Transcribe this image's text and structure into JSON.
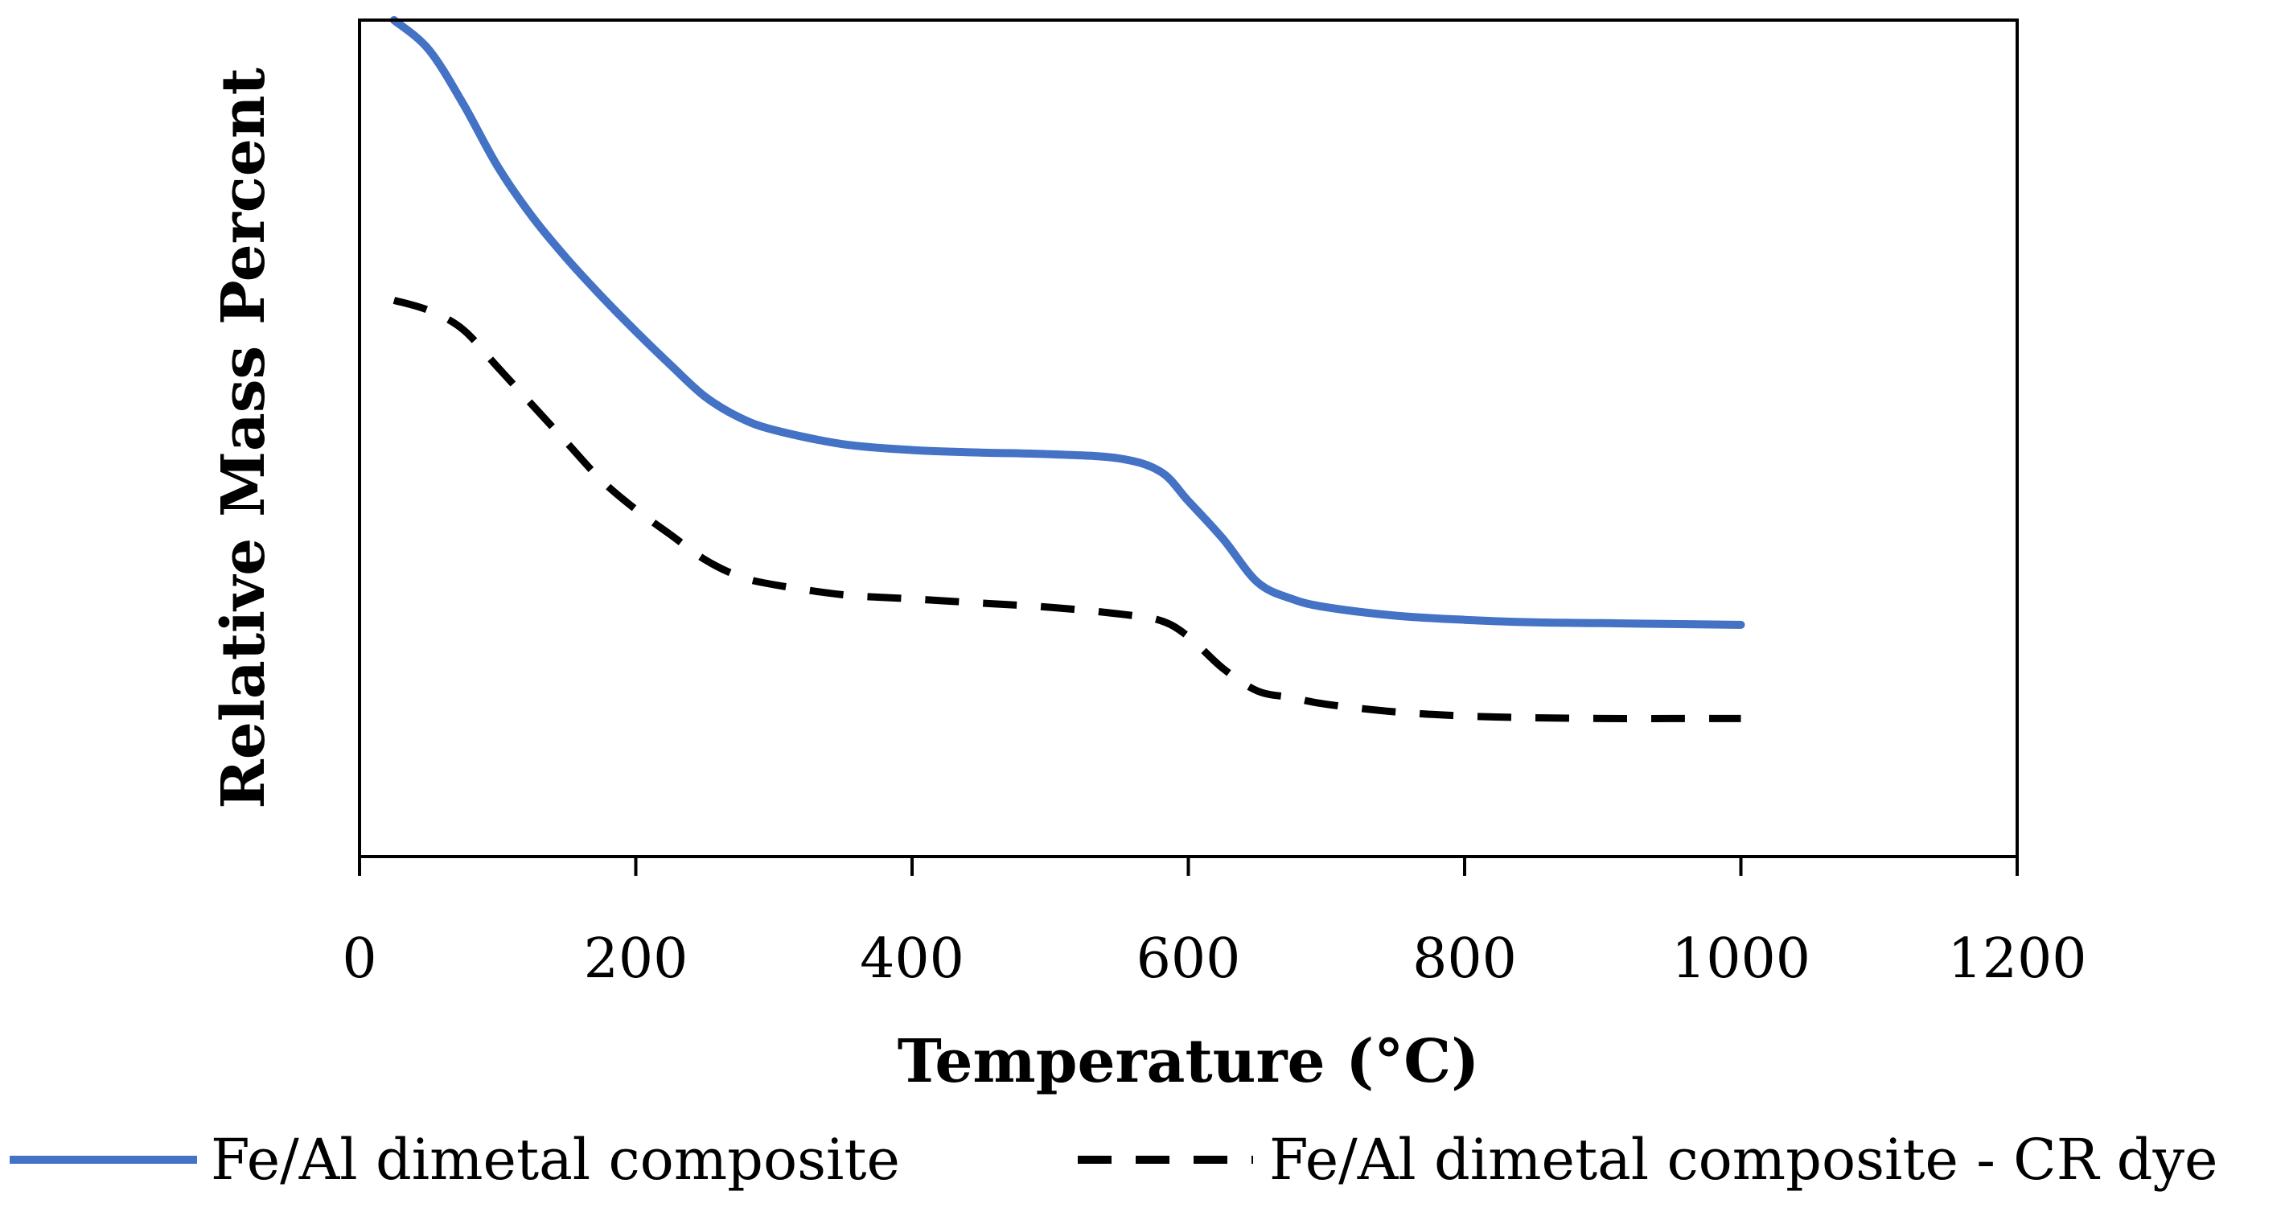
{
  "chart_data": {
    "type": "line",
    "title": "",
    "xlabel": "Temperature (°C)",
    "ylabel": "Relative Mass Percent",
    "xlim": [
      0,
      1200
    ],
    "ylim": [
      0,
      100
    ],
    "x_ticks": [
      0,
      200,
      400,
      600,
      800,
      1000,
      1200
    ],
    "x_tick_labels": [
      "0",
      "200",
      "400",
      "600",
      "800",
      "1000",
      "1200"
    ],
    "y_ticks_shown": false,
    "grid": false,
    "legend_position": "bottom",
    "series": [
      {
        "name": "Fe/Al dimetal composite",
        "style": "solid",
        "color": "#4472C4",
        "x": [
          25,
          50,
          75,
          100,
          125,
          150,
          175,
          200,
          225,
          250,
          275,
          300,
          350,
          400,
          450,
          500,
          550,
          580,
          600,
          625,
          650,
          675,
          700,
          750,
          800,
          850,
          900,
          950,
          1000
        ],
        "y": [
          100,
          96.5,
          90,
          82.5,
          76.5,
          71.5,
          67,
          62.8,
          58.8,
          55,
          52.5,
          51,
          49.3,
          48.6,
          48.3,
          48.1,
          47.6,
          46,
          42.5,
          38,
          32.8,
          30.8,
          29.8,
          28.8,
          28.3,
          28,
          27.9,
          27.8,
          27.7
        ]
      },
      {
        "name": "Fe/Al dimetal composite - CR dye",
        "style": "dashed",
        "color": "#000000",
        "x": [
          25,
          50,
          75,
          100,
          125,
          150,
          175,
          200,
          225,
          250,
          275,
          300,
          350,
          400,
          450,
          500,
          550,
          580,
          600,
          625,
          650,
          675,
          700,
          750,
          800,
          850,
          900,
          950,
          1000
        ],
        "y": [
          66.5,
          65.3,
          63,
          58.5,
          54,
          49.5,
          45,
          41.5,
          38.5,
          35.5,
          33.5,
          32.5,
          31.3,
          30.8,
          30.3,
          29.8,
          29,
          28.2,
          26.3,
          22.5,
          19.8,
          19,
          18.2,
          17.3,
          16.8,
          16.6,
          16.5,
          16.5,
          16.5
        ]
      }
    ]
  }
}
